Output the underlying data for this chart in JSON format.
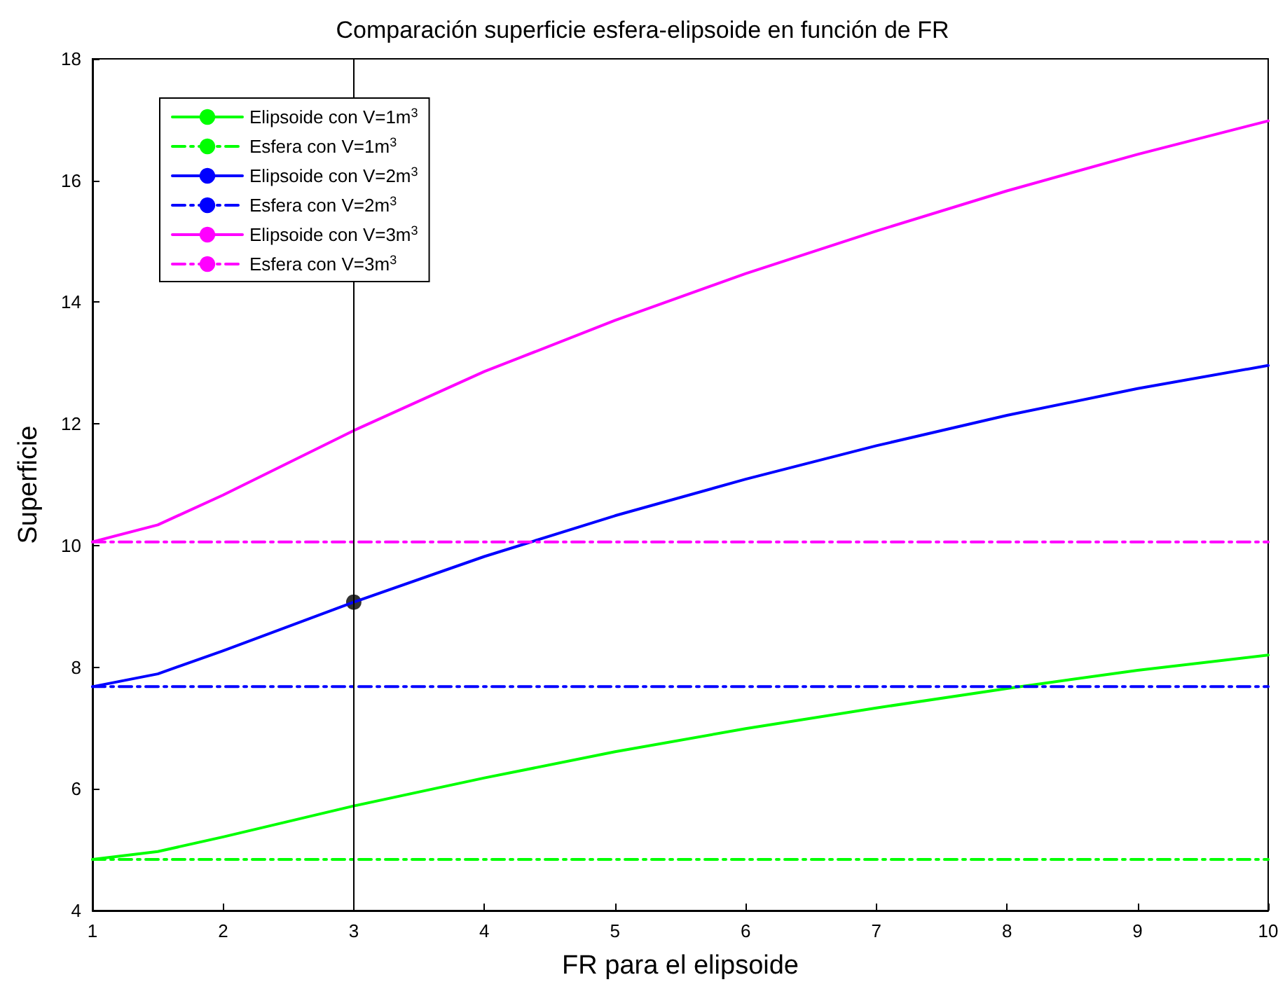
{
  "chart_data": {
    "type": "line",
    "title": "Comparación superficie esfera-elipsoide en función de FR",
    "xlabel": "FR para el elipsoide",
    "ylabel": "Superficie",
    "x": [
      1,
      1.5,
      2,
      3,
      4,
      5,
      6,
      7,
      8,
      9,
      10
    ],
    "series": [
      {
        "name": "Elipsoide con V=1m$^{3}$",
        "color": "#00ff00",
        "line_style": "solid",
        "values": [
          4.84,
          4.97,
          5.21,
          5.72,
          6.18,
          6.61,
          6.99,
          7.33,
          7.65,
          7.95,
          8.2
        ]
      },
      {
        "name": "Esfera con V=1m$^{3}$",
        "color": "#00ff00",
        "line_style": "dashdot",
        "values": [
          4.84,
          4.84,
          4.84,
          4.84,
          4.84,
          4.84,
          4.84,
          4.84,
          4.84,
          4.84,
          4.84
        ]
      },
      {
        "name": "Elipsoide con V=2m$^{3}$",
        "color": "#0000ff",
        "line_style": "solid",
        "values": [
          7.68,
          7.89,
          8.27,
          9.07,
          9.82,
          10.49,
          11.09,
          11.64,
          12.14,
          12.58,
          12.96
        ]
      },
      {
        "name": "Esfera con V=2m$^{3}$",
        "color": "#0000ff",
        "line_style": "dashdot",
        "values": [
          7.68,
          7.68,
          7.68,
          7.68,
          7.68,
          7.68,
          7.68,
          7.68,
          7.68,
          7.68,
          7.68
        ]
      },
      {
        "name": "Elipsoide con V=3m$^{3}$",
        "color": "#ff00ff",
        "line_style": "solid",
        "values": [
          10.06,
          10.34,
          10.83,
          11.89,
          12.86,
          13.7,
          14.47,
          15.17,
          15.83,
          16.43,
          16.98
        ]
      },
      {
        "name": "Esfera con V=3m$^{3}$",
        "color": "#ff00ff",
        "line_style": "dashdot",
        "values": [
          10.06,
          10.06,
          10.06,
          10.06,
          10.06,
          10.06,
          10.06,
          10.06,
          10.06,
          10.06,
          10.06
        ]
      },
      {
        "type": "scatter",
        "color": "#000000",
        "marker": "circle",
        "x": [
          3
        ],
        "values": [
          9.07
        ]
      }
    ],
    "ref_lines": [
      {
        "axis": "x",
        "value": 3,
        "color": "#000000"
      }
    ],
    "xlim": [
      1,
      10
    ],
    "xticks": [
      1,
      2,
      3,
      4,
      5,
      6,
      7,
      8,
      9,
      10
    ],
    "ylim": [
      4,
      18
    ],
    "yticks": [
      4,
      6,
      8,
      10,
      12,
      14,
      16,
      18
    ],
    "grid": false,
    "legend": "top left",
    "marker": "none"
  }
}
